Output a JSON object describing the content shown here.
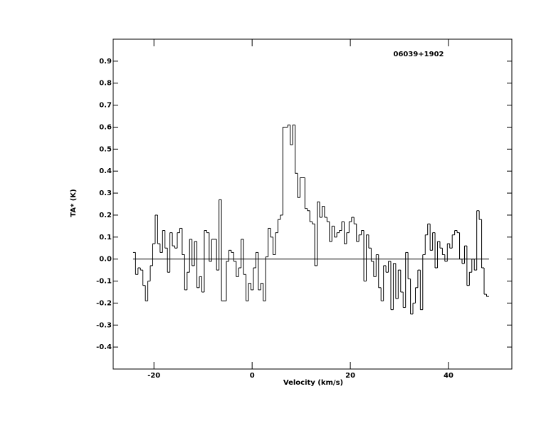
{
  "chart_data": {
    "type": "step",
    "annotation": "06039+1902",
    "x_label": "Velocity (km/s)",
    "y_label": "TA* (K)",
    "color": "#000000",
    "baseline": 0,
    "x": [
      -24,
      -23.5,
      -23,
      -22.5,
      -22,
      -21.5,
      -21,
      -20.5,
      -20,
      -19.5,
      -19,
      -18.5,
      -18,
      -17.5,
      -17,
      -16.5,
      -16,
      -15.5,
      -15,
      -14.5,
      -14,
      -13.5,
      -13,
      -12.5,
      -12,
      -11.5,
      -11,
      -10.5,
      -10,
      -9.5,
      -9,
      -8.5,
      -8,
      -7.5,
      -7,
      -6.5,
      -6,
      -5.5,
      -5,
      -4.5,
      -4,
      -3.5,
      -3,
      -2.5,
      -2,
      -1.5,
      -1,
      -0.5,
      0,
      0.5,
      1,
      1.5,
      2,
      2.5,
      3,
      3.5,
      4,
      4.5,
      5,
      5.5,
      6,
      6.5,
      7,
      7.5,
      8,
      8.5,
      9,
      9.5,
      10,
      10.5,
      11,
      11.5,
      12,
      12.5,
      13,
      13.5,
      14,
      14.5,
      15,
      15.5,
      16,
      16.5,
      17,
      17.5,
      18,
      18.5,
      19,
      19.5,
      20,
      20.5,
      21,
      21.5,
      22,
      22.5,
      23,
      23.5,
      24,
      24.5,
      25,
      25.5,
      26,
      26.5,
      27,
      27.5,
      28,
      28.5,
      29,
      29.5,
      30,
      30.5,
      31,
      31.5,
      32,
      32.5,
      33,
      33.5,
      34,
      34.5,
      35,
      35.5,
      36,
      36.5,
      37,
      37.5,
      38,
      38.5,
      39,
      39.5,
      40,
      40.5,
      41,
      41.5,
      42,
      42.5,
      43,
      43.5,
      44,
      44.5,
      45,
      45.5,
      46,
      46.5,
      47,
      47.5,
      48
    ],
    "values": [
      0.03,
      -0.07,
      -0.04,
      -0.05,
      -0.12,
      -0.19,
      -0.1,
      -0.03,
      0.07,
      0.2,
      0.07,
      0.03,
      0.13,
      0.05,
      -0.06,
      0.12,
      0.06,
      0.05,
      0.12,
      0.14,
      0.02,
      -0.14,
      -0.06,
      0.09,
      -0.03,
      0.08,
      -0.13,
      -0.08,
      -0.15,
      0.13,
      0.12,
      -0.01,
      0.09,
      0.09,
      -0.05,
      0.27,
      -0.19,
      -0.19,
      -0.01,
      0.04,
      0.03,
      -0.01,
      -0.08,
      -0.04,
      0.09,
      -0.07,
      -0.19,
      -0.11,
      -0.14,
      -0.04,
      0.03,
      -0.14,
      -0.11,
      -0.19,
      0.01,
      0.14,
      0.1,
      0.02,
      0.12,
      0.18,
      0.2,
      0.6,
      0.6,
      0.61,
      0.52,
      0.61,
      0.39,
      0.28,
      0.37,
      0.37,
      0.23,
      0.22,
      0.17,
      0.16,
      -0.03,
      0.26,
      0.19,
      0.24,
      0.19,
      0.17,
      0.08,
      0.15,
      0.1,
      0.12,
      0.13,
      0.17,
      0.07,
      0.12,
      0.17,
      0.19,
      0.16,
      0.08,
      0.11,
      0.13,
      -0.1,
      0.11,
      0.05,
      -0.01,
      -0.08,
      0.02,
      -0.13,
      -0.19,
      -0.03,
      -0.06,
      -0.01,
      -0.23,
      -0.02,
      -0.18,
      -0.05,
      -0.15,
      -0.22,
      0.03,
      -0.09,
      -0.25,
      -0.2,
      -0.13,
      -0.05,
      -0.23,
      0.02,
      0.11,
      0.16,
      0.04,
      0.12,
      -0.04,
      0.08,
      0.05,
      0.02,
      -0.01,
      0.07,
      0.05,
      0.11,
      0.13,
      0.12,
      0.0,
      -0.02,
      0.06,
      -0.12,
      -0.06,
      0.0,
      -0.05,
      0.22,
      0.18,
      -0.04,
      -0.16,
      -0.17
    ],
    "xlim": [
      -28.3,
      52.9
    ],
    "ylim": [
      -0.5,
      1.0
    ],
    "xticks": [
      -20,
      0,
      20,
      40
    ],
    "yticks": [
      -0.4,
      -0.3,
      -0.2,
      -0.1,
      {
        "value": 0,
        "label": "0.0"
      },
      0.1,
      0.2,
      0.3,
      0.4,
      0.5,
      0.6,
      0.7,
      0.8,
      0.9
    ]
  }
}
